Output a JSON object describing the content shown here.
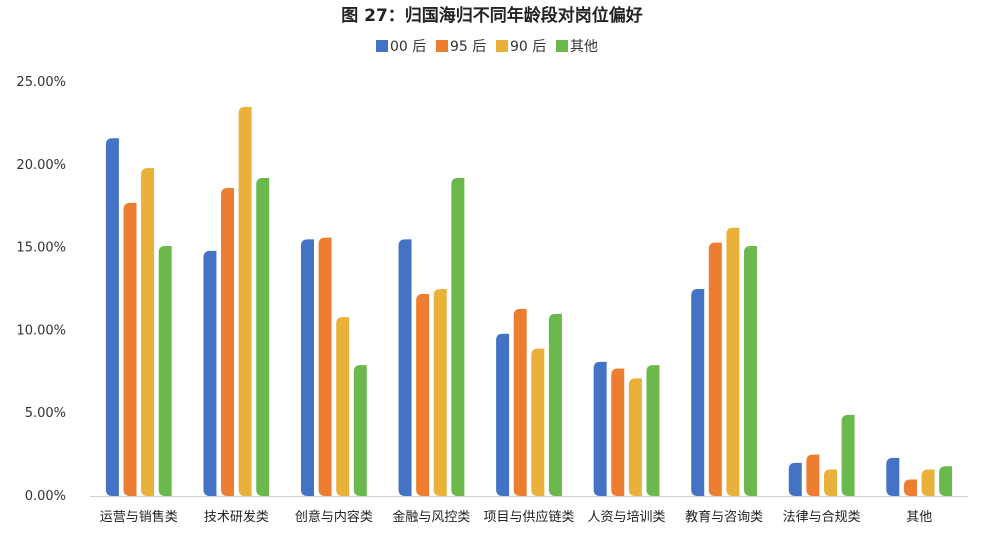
{
  "chart_data": {
    "type": "bar",
    "title": "图 27：归国海归不同年龄段对岗位偏好",
    "xlabel": "",
    "ylabel": "",
    "ylim": [
      0,
      25
    ],
    "yticks": [
      "0.00%",
      "5.00%",
      "10.00%",
      "15.00%",
      "20.00%",
      "25.00%"
    ],
    "legend_position": "top-center",
    "grid": false,
    "categories": [
      "运营与销售类",
      "技术研发类",
      "创意与内容类",
      "金融与风控类",
      "项目与供应链类",
      "人资与培训类",
      "教育与咨询类",
      "法律与合规类",
      "其他"
    ],
    "series": [
      {
        "name": "00 后",
        "color": "#4472C4",
        "values": [
          21.6,
          14.8,
          15.5,
          15.5,
          9.8,
          8.1,
          12.5,
          2.0,
          2.3
        ]
      },
      {
        "name": "95 后",
        "color": "#ED7D31",
        "values": [
          17.7,
          18.6,
          15.6,
          12.2,
          11.3,
          7.7,
          15.3,
          2.5,
          1.0
        ]
      },
      {
        "name": "90 后",
        "color": "#E9B03A",
        "values": [
          19.8,
          23.5,
          10.8,
          12.5,
          8.9,
          7.1,
          16.2,
          1.6,
          1.6
        ]
      },
      {
        "name": "其他",
        "color": "#6BB84D",
        "values": [
          15.1,
          19.2,
          7.9,
          19.2,
          11.0,
          7.9,
          15.1,
          4.9,
          1.8
        ]
      }
    ]
  }
}
